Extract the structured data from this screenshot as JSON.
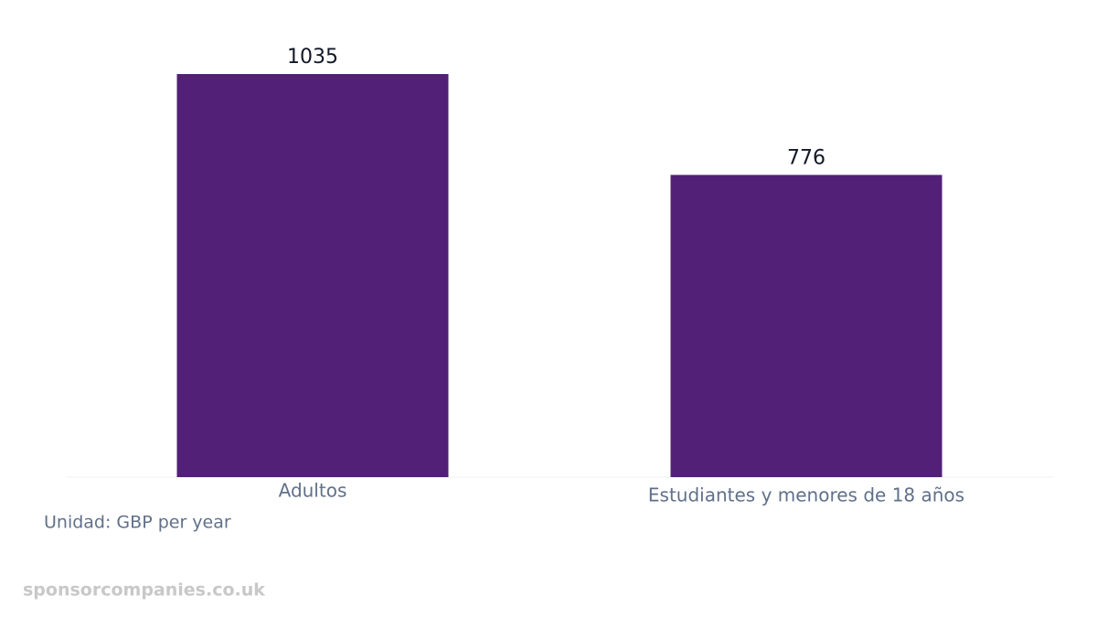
{
  "chart_data": {
    "type": "bar",
    "categories": [
      "Adultos",
      "Estudiantes y menores de 18 años"
    ],
    "values": [
      1035,
      776
    ],
    "color": "#522076",
    "note": "Unidad: GBP per year",
    "watermark": "sponsorcompanies.co.uk"
  }
}
